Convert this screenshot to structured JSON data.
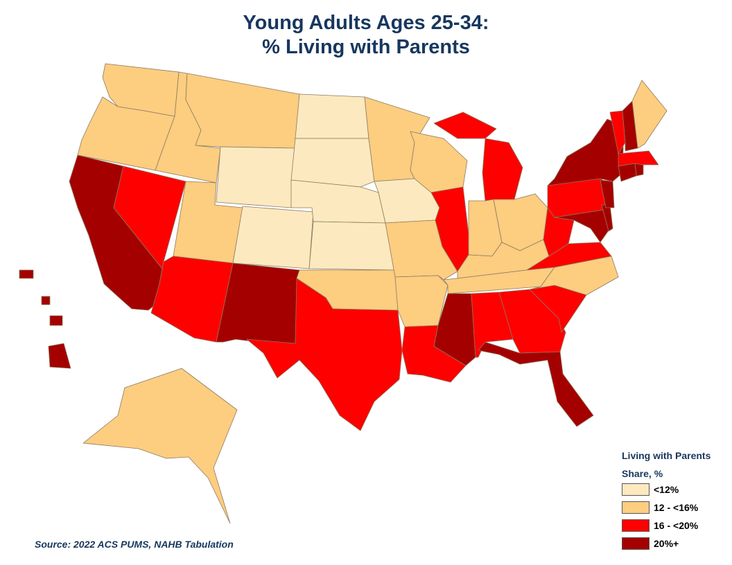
{
  "title_line1": "Young Adults Ages 25-34:",
  "title_line2": "% Living with Parents",
  "legend": {
    "title": "Living with Parents",
    "subtitle": "Share, %",
    "items": [
      {
        "label": "<12%",
        "color": "#fde9bf"
      },
      {
        "label": "12 - <16%",
        "color": "#fdcd80"
      },
      {
        "label": "16 - <20%",
        "color": "#ff0000"
      },
      {
        "label": "20%+",
        "color": "#a50000"
      }
    ]
  },
  "source": "Source: 2022 ACS PUMS, NAHB Tabulation",
  "map_data": {
    "bins": [
      "<12%",
      "12 - <16%",
      "16 - <20%",
      "20%+"
    ],
    "states": {
      "WA": 1,
      "OR": 1,
      "ID": 1,
      "MT": 1,
      "WY": 0,
      "ND": 0,
      "SD": 0,
      "NE": 0,
      "CO": 0,
      "KS": 0,
      "IA": 0,
      "MN": 1,
      "WI": 1,
      "UT": 1,
      "NV": 2,
      "CA": 3,
      "AZ": 2,
      "NM": 3,
      "TX": 2,
      "OK": 1,
      "MO": 1,
      "AR": 1,
      "LA": 2,
      "MS": 3,
      "AL": 2,
      "GA": 2,
      "FL": 3,
      "SC": 2,
      "NC": 1,
      "TN": 1,
      "KY": 1,
      "IL": 2,
      "IN": 1,
      "OH": 1,
      "MI": 2,
      "PA": 2,
      "WV": 2,
      "VA": 2,
      "MD": 3,
      "DE": 3,
      "NJ": 3,
      "NY": 3,
      "CT": 3,
      "RI": 3,
      "MA": 2,
      "VT": 2,
      "NH": 3,
      "ME": 1,
      "AK": 1,
      "HI": 3
    }
  }
}
